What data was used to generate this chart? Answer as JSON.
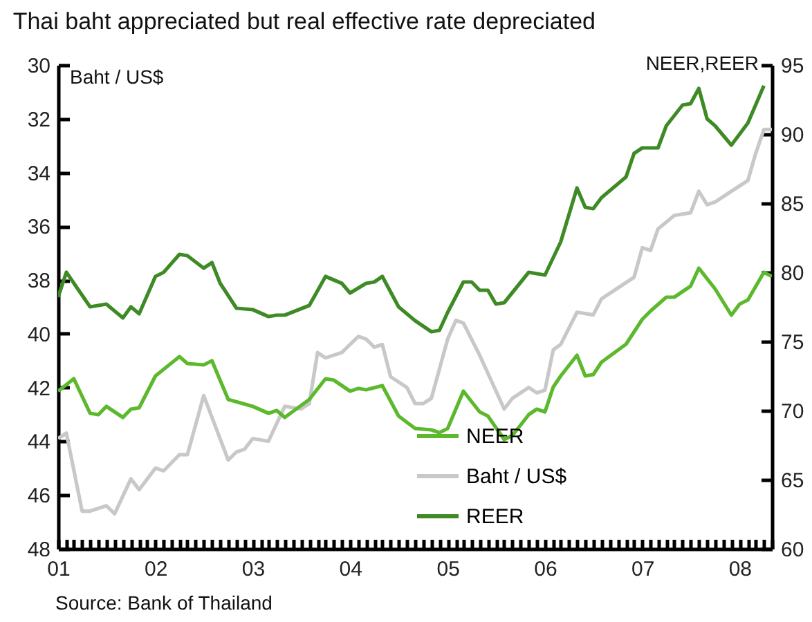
{
  "chart_data": {
    "type": "line",
    "title": "Thai baht appreciated but real effective rate depreciated",
    "ylabel": "Baht / US$",
    "y2label": "NEER,REER",
    "annotations": [
      "Source: Bank of Thailand"
    ],
    "xlim": [
      "2001-01",
      "2008-05"
    ],
    "ylim": [
      48,
      30
    ],
    "yticks": [
      30,
      32,
      34,
      36,
      38,
      40,
      42,
      44,
      46,
      48
    ],
    "y2lim": [
      60,
      95
    ],
    "y2ticks": [
      60,
      65,
      70,
      75,
      80,
      85,
      90,
      95
    ],
    "legend": "bottom",
    "grid": false,
    "line_style": "solid",
    "xticks": [
      {
        "value": "2001-01",
        "label": "01"
      },
      {
        "value": "2001-02",
        "label": null
      },
      {
        "value": "2001-03",
        "label": null
      },
      {
        "value": "2001-04",
        "label": null
      },
      {
        "value": "2001-05",
        "label": null
      },
      {
        "value": "2001-06",
        "label": null
      },
      {
        "value": "2001-07",
        "label": null
      },
      {
        "value": "2001-08",
        "label": null
      },
      {
        "value": "2001-09",
        "label": null
      },
      {
        "value": "2001-10",
        "label": null
      },
      {
        "value": "2001-11",
        "label": null
      },
      {
        "value": "2001-12",
        "label": null
      },
      {
        "value": "2002-01",
        "label": "02"
      },
      {
        "value": "2002-02",
        "label": null
      },
      {
        "value": "2002-03",
        "label": null
      },
      {
        "value": "2002-04",
        "label": null
      },
      {
        "value": "2002-05",
        "label": null
      },
      {
        "value": "2002-06",
        "label": null
      },
      {
        "value": "2002-07",
        "label": null
      },
      {
        "value": "2002-08",
        "label": null
      },
      {
        "value": "2002-09",
        "label": null
      },
      {
        "value": "2002-10",
        "label": null
      },
      {
        "value": "2002-11",
        "label": null
      },
      {
        "value": "2002-12",
        "label": null
      },
      {
        "value": "2003-01",
        "label": "03"
      },
      {
        "value": "2003-02",
        "label": null
      },
      {
        "value": "2003-03",
        "label": null
      },
      {
        "value": "2003-04",
        "label": null
      },
      {
        "value": "2003-05",
        "label": null
      },
      {
        "value": "2003-06",
        "label": null
      },
      {
        "value": "2003-07",
        "label": null
      },
      {
        "value": "2003-08",
        "label": null
      },
      {
        "value": "2003-09",
        "label": null
      },
      {
        "value": "2003-10",
        "label": null
      },
      {
        "value": "2003-11",
        "label": null
      },
      {
        "value": "2003-12",
        "label": null
      },
      {
        "value": "2004-01",
        "label": "04"
      },
      {
        "value": "2004-02",
        "label": null
      },
      {
        "value": "2004-03",
        "label": null
      },
      {
        "value": "2004-04",
        "label": null
      },
      {
        "value": "2004-05",
        "label": null
      },
      {
        "value": "2004-06",
        "label": null
      },
      {
        "value": "2004-07",
        "label": null
      },
      {
        "value": "2004-08",
        "label": null
      },
      {
        "value": "2004-09",
        "label": null
      },
      {
        "value": "2004-10",
        "label": null
      },
      {
        "value": "2004-11",
        "label": null
      },
      {
        "value": "2004-12",
        "label": null
      },
      {
        "value": "2005-01",
        "label": "05"
      },
      {
        "value": "2005-02",
        "label": null
      },
      {
        "value": "2005-03",
        "label": null
      },
      {
        "value": "2005-04",
        "label": null
      },
      {
        "value": "2005-05",
        "label": null
      },
      {
        "value": "2005-06",
        "label": null
      },
      {
        "value": "2005-07",
        "label": null
      },
      {
        "value": "2005-08",
        "label": null
      },
      {
        "value": "2005-09",
        "label": null
      },
      {
        "value": "2005-10",
        "label": null
      },
      {
        "value": "2005-11",
        "label": null
      },
      {
        "value": "2005-12",
        "label": null
      },
      {
        "value": "2006-01",
        "label": "06"
      },
      {
        "value": "2006-02",
        "label": null
      },
      {
        "value": "2006-03",
        "label": null
      },
      {
        "value": "2006-04",
        "label": null
      },
      {
        "value": "2006-05",
        "label": null
      },
      {
        "value": "2006-06",
        "label": null
      },
      {
        "value": "2006-07",
        "label": null
      },
      {
        "value": "2006-08",
        "label": null
      },
      {
        "value": "2006-09",
        "label": null
      },
      {
        "value": "2006-10",
        "label": null
      },
      {
        "value": "2006-11",
        "label": null
      },
      {
        "value": "2006-12",
        "label": null
      },
      {
        "value": "2007-01",
        "label": "07"
      },
      {
        "value": "2007-02",
        "label": null
      },
      {
        "value": "2007-03",
        "label": null
      },
      {
        "value": "2007-04",
        "label": null
      },
      {
        "value": "2007-05",
        "label": null
      },
      {
        "value": "2007-06",
        "label": null
      },
      {
        "value": "2007-07",
        "label": null
      },
      {
        "value": "2007-08",
        "label": null
      },
      {
        "value": "2007-09",
        "label": null
      },
      {
        "value": "2007-10",
        "label": null
      },
      {
        "value": "2007-11",
        "label": null
      },
      {
        "value": "2007-12",
        "label": null
      },
      {
        "value": "2008-01",
        "label": "08"
      },
      {
        "value": "2008-02",
        "label": null
      },
      {
        "value": "2008-03",
        "label": null
      },
      {
        "value": "2008-04",
        "label": null
      },
      {
        "value": "2008-05",
        "label": null
      }
    ],
    "series": [
      {
        "name": "NEER",
        "color": "#5cb82c",
        "axis": "y2",
        "x": [
          "2001-01",
          "2001-03",
          "2001-05",
          "2001-06",
          "2001-07",
          "2001-09",
          "2001-10",
          "2001-11",
          "2002-01",
          "2002-04",
          "2002-05",
          "2002-07",
          "2002-08",
          "2002-10",
          "2003-01",
          "2003-03",
          "2003-04",
          "2003-05",
          "2003-08",
          "2003-10",
          "2003-11",
          "2004-01",
          "2004-02",
          "2004-03",
          "2004-05",
          "2004-07",
          "2004-09",
          "2004-11",
          "2004-12",
          "2005-01",
          "2005-03",
          "2005-05",
          "2005-06",
          "2005-08",
          "2005-09",
          "2005-11",
          "2005-12",
          "2006-01",
          "2006-02",
          "2006-03",
          "2006-05",
          "2006-06",
          "2006-07",
          "2006-08",
          "2006-11",
          "2007-01",
          "2007-02",
          "2007-04",
          "2007-05",
          "2007-07",
          "2007-08",
          "2007-10",
          "2007-12",
          "2008-01",
          "2008-02",
          "2008-04",
          "2008-05"
        ],
        "values": [
          71.4,
          72.3,
          69.8,
          69.7,
          70.3,
          69.5,
          70.1,
          70.2,
          72.5,
          73.9,
          73.4,
          73.3,
          73.6,
          70.8,
          70.3,
          69.8,
          70.0,
          69.5,
          70.8,
          72.3,
          72.2,
          71.4,
          71.6,
          71.5,
          71.8,
          69.6,
          68.7,
          68.6,
          68.4,
          68.7,
          71.4,
          69.9,
          69.6,
          67.9,
          68.2,
          69.7,
          70.1,
          69.9,
          71.7,
          72.5,
          74.0,
          72.5,
          72.6,
          73.5,
          74.8,
          76.6,
          77.2,
          78.2,
          78.2,
          79.0,
          80.3,
          78.8,
          76.9,
          77.7,
          78.0,
          80.0,
          79.7
        ]
      },
      {
        "name": "Baht / US$",
        "color": "#c8c8c8",
        "x": [
          "2001-01",
          "2001-02",
          "2001-04",
          "2001-05",
          "2001-07",
          "2001-08",
          "2001-10",
          "2001-11",
          "2002-01",
          "2002-02",
          "2002-04",
          "2002-05",
          "2002-07",
          "2002-10",
          "2002-11",
          "2002-12",
          "2003-01",
          "2003-03",
          "2003-05",
          "2003-07",
          "2003-08",
          "2003-09",
          "2003-10",
          "2003-12",
          "2004-02",
          "2004-03",
          "2004-04",
          "2004-05",
          "2004-06",
          "2004-08",
          "2004-09",
          "2004-10",
          "2004-11",
          "2005-01",
          "2005-02",
          "2005-03",
          "2005-05",
          "2005-08",
          "2005-09",
          "2005-11",
          "2005-12",
          "2006-01",
          "2006-02",
          "2006-03",
          "2006-05",
          "2006-07",
          "2006-08",
          "2006-10",
          "2006-12",
          "2007-01",
          "2007-02",
          "2007-03",
          "2007-05",
          "2007-07",
          "2007-08",
          "2007-09",
          "2007-10",
          "2007-12",
          "2008-02",
          "2008-03",
          "2008-04",
          "2008-05"
        ],
        "values": [
          43.9,
          43.7,
          46.6,
          46.6,
          46.4,
          46.7,
          45.4,
          45.8,
          45.0,
          45.1,
          44.5,
          44.5,
          42.3,
          44.7,
          44.4,
          44.3,
          43.9,
          44.0,
          42.7,
          42.8,
          42.6,
          40.7,
          40.9,
          40.7,
          40.1,
          40.2,
          40.5,
          40.4,
          41.6,
          42.0,
          42.6,
          42.6,
          42.4,
          40.2,
          39.5,
          39.6,
          40.8,
          42.8,
          42.4,
          42.0,
          42.2,
          42.1,
          40.6,
          40.4,
          39.2,
          39.3,
          38.7,
          38.3,
          37.9,
          36.8,
          36.9,
          36.1,
          35.6,
          35.5,
          34.7,
          35.2,
          35.1,
          34.7,
          34.3,
          33.3,
          32.4,
          32.4
        ]
      },
      {
        "name": "REER",
        "color": "#3e8a25",
        "axis": "y2",
        "x": [
          "2001-01",
          "2001-02",
          "2001-05",
          "2001-07",
          "2001-09",
          "2001-10",
          "2001-11",
          "2002-01",
          "2002-02",
          "2002-04",
          "2002-05",
          "2002-07",
          "2002-08",
          "2002-09",
          "2002-11",
          "2003-01",
          "2003-03",
          "2003-04",
          "2003-05",
          "2003-08",
          "2003-10",
          "2003-12",
          "2004-01",
          "2004-03",
          "2004-04",
          "2004-05",
          "2004-07",
          "2004-09",
          "2004-11",
          "2004-12",
          "2005-01",
          "2005-03",
          "2005-04",
          "2005-05",
          "2005-06",
          "2005-07",
          "2005-08",
          "2005-11",
          "2006-01",
          "2006-03",
          "2006-05",
          "2006-06",
          "2006-07",
          "2006-08",
          "2006-11",
          "2006-12",
          "2007-01",
          "2007-03",
          "2007-04",
          "2007-06",
          "2007-07",
          "2007-08",
          "2007-09",
          "2007-10",
          "2007-12",
          "2008-02",
          "2008-04"
        ],
        "values": [
          78.2,
          80.0,
          77.5,
          77.7,
          76.7,
          77.5,
          77.0,
          79.7,
          80.0,
          81.3,
          81.2,
          80.3,
          80.7,
          79.2,
          77.4,
          77.3,
          76.8,
          76.9,
          76.9,
          77.6,
          79.7,
          79.2,
          78.5,
          79.2,
          79.3,
          79.7,
          77.5,
          76.5,
          75.7,
          75.8,
          77.1,
          79.3,
          79.3,
          78.7,
          78.7,
          77.7,
          77.8,
          80.0,
          79.8,
          82.2,
          86.1,
          84.7,
          84.6,
          85.4,
          86.9,
          88.6,
          89.0,
          89.0,
          90.6,
          92.1,
          92.2,
          93.3,
          91.1,
          90.6,
          89.2,
          90.8,
          93.5
        ]
      }
    ]
  }
}
